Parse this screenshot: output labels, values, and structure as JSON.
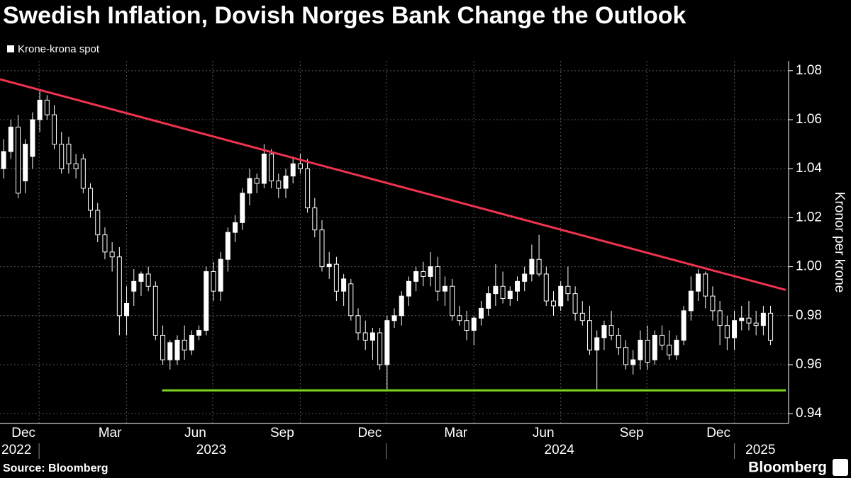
{
  "chart_data": {
    "type": "candlestick",
    "title": "Swedish Inflation, Dovish Norges Bank Change the Outlook",
    "legend": "Krone-krona spot",
    "y_axis_label": "Kronor per krone",
    "source": "Source: Bloomberg",
    "brand": "Bloomberg",
    "color": "#ffffff",
    "grid": true,
    "ylim": [
      0.936,
      1.084
    ],
    "yticks": [
      1.08,
      1.06,
      1.04,
      1.02,
      {
        "value": 1,
        "label": "1.00"
      },
      0.98,
      0.96,
      0.94
    ],
    "xlim": [
      -0.5,
      108.1
    ],
    "xticks": [
      {
        "value": 2.75,
        "label": "Dec"
      },
      {
        "value": 14.7,
        "label": "Mar"
      },
      {
        "value": 26.5,
        "label": "Jun"
      },
      {
        "value": 38.5,
        "label": "Sep"
      },
      {
        "value": 50.6,
        "label": "Dec"
      },
      {
        "value": 62.5,
        "label": "Mar"
      },
      {
        "value": 74.6,
        "label": "Jun"
      },
      {
        "value": 86.8,
        "label": "Sep"
      },
      {
        "value": 98.8,
        "label": "Dec"
      }
    ],
    "xgrid": [
      4.9,
      17.0,
      28.9,
      41.0,
      52.9,
      65.0,
      77.0,
      88.9,
      101.0
    ],
    "years": [
      {
        "value": -0.5,
        "label": "2022"
      },
      {
        "value": 28.7,
        "label": "2023"
      },
      {
        "value": 76.8,
        "label": "2024"
      },
      {
        "value": 104.6,
        "label": "2025"
      }
    ],
    "year_starts": [
      4.9,
      52.9,
      101.0
    ],
    "lines": [
      {
        "color": "#f0334f",
        "x": [
          -0.5,
          108.1
        ],
        "y": [
          1.0765,
          0.9905
        ]
      },
      {
        "color": "#7ed321",
        "x": [
          21.9,
          108.1
        ],
        "y": [
          0.9495,
          0.9495
        ]
      }
    ],
    "candles": [
      [
        1.04,
        1.052,
        1.036,
        1.047
      ],
      [
        1.047,
        1.06,
        1.044,
        1.057
      ],
      [
        1.057,
        1.062,
        1.028,
        1.03
      ],
      [
        1.035,
        1.052,
        1.03,
        1.05
      ],
      [
        1.045,
        1.063,
        1.04,
        1.06
      ],
      [
        1.06,
        1.072,
        1.055,
        1.068
      ],
      [
        1.068,
        1.07,
        1.06,
        1.062
      ],
      [
        1.062,
        1.066,
        1.048,
        1.05
      ],
      [
        1.05,
        1.055,
        1.038,
        1.04
      ],
      [
        1.05,
        1.053,
        1.038,
        1.042
      ],
      [
        1.042,
        1.046,
        1.036,
        1.04
      ],
      [
        1.044,
        1.046,
        1.03,
        1.032
      ],
      [
        1.032,
        1.034,
        1.02,
        1.023
      ],
      [
        1.023,
        1.026,
        1.01,
        1.013
      ],
      [
        1.013,
        1.016,
        1.003,
        1.006
      ],
      [
        1.006,
        1.01,
        0.998,
        1.004
      ],
      [
        1.004,
        1.008,
        0.972,
        0.98
      ],
      [
        0.98,
        0.992,
        0.972,
        0.985
      ],
      [
        0.99,
        0.999,
        0.984,
        0.994
      ],
      [
        0.994,
        0.998,
        0.988,
        0.997
      ],
      [
        0.997,
        1.0,
        0.99,
        0.992
      ],
      [
        0.992,
        0.994,
        0.97,
        0.972
      ],
      [
        0.972,
        0.976,
        0.96,
        0.962
      ],
      [
        0.962,
        0.97,
        0.958,
        0.969
      ],
      [
        0.962,
        0.972,
        0.96,
        0.97
      ],
      [
        0.97,
        0.976,
        0.962,
        0.966
      ],
      [
        0.966,
        0.974,
        0.964,
        0.972
      ],
      [
        0.972,
        0.976,
        0.97,
        0.974
      ],
      [
        0.974,
        1.0,
        0.972,
        0.998
      ],
      [
        0.998,
        1.002,
        0.986,
        0.99
      ],
      [
        0.99,
        1.006,
        0.986,
        1.003
      ],
      [
        1.003,
        1.016,
        0.998,
        1.014
      ],
      [
        1.014,
        1.021,
        1.01,
        1.018
      ],
      [
        1.018,
        1.032,
        1.015,
        1.03
      ],
      [
        1.03,
        1.04,
        1.025,
        1.036
      ],
      [
        1.036,
        1.038,
        1.03,
        1.034
      ],
      [
        1.034,
        1.05,
        1.032,
        1.046
      ],
      [
        1.046,
        1.048,
        1.032,
        1.035
      ],
      [
        1.035,
        1.038,
        1.028,
        1.032
      ],
      [
        1.032,
        1.04,
        1.028,
        1.037
      ],
      [
        1.037,
        1.045,
        1.034,
        1.042
      ],
      [
        1.042,
        1.046,
        1.038,
        1.04
      ],
      [
        1.04,
        1.044,
        1.022,
        1.024
      ],
      [
        1.024,
        1.028,
        1.012,
        1.015
      ],
      [
        1.015,
        1.019,
        0.998,
        1.0
      ],
      [
        1.0,
        1.006,
        0.995,
        1.001
      ],
      [
        1.001,
        1.004,
        0.986,
        0.99
      ],
      [
        0.99,
        0.997,
        0.984,
        0.995
      ],
      [
        0.993,
        0.995,
        0.978,
        0.98
      ],
      [
        0.98,
        0.983,
        0.97,
        0.973
      ],
      [
        0.973,
        0.978,
        0.966,
        0.97
      ],
      [
        0.97,
        0.975,
        0.962,
        0.973
      ],
      [
        0.973,
        0.975,
        0.958,
        0.96
      ],
      [
        0.96,
        0.98,
        0.95,
        0.978
      ],
      [
        0.978,
        0.983,
        0.975,
        0.98
      ],
      [
        0.98,
        0.99,
        0.976,
        0.988
      ],
      [
        0.988,
        0.996,
        0.984,
        0.994
      ],
      [
        0.994,
        1.0,
        0.99,
        0.998
      ],
      [
        0.998,
        1.002,
        0.992,
        0.996
      ],
      [
        0.996,
        1.006,
        0.992,
        1.0
      ],
      [
        1.0,
        1.004,
        0.986,
        0.99
      ],
      [
        0.99,
        0.996,
        0.984,
        0.992
      ],
      [
        0.992,
        0.995,
        0.978,
        0.98
      ],
      [
        0.98,
        0.984,
        0.976,
        0.978
      ],
      [
        0.978,
        0.982,
        0.97,
        0.974
      ],
      [
        0.974,
        0.98,
        0.968,
        0.979
      ],
      [
        0.979,
        0.986,
        0.976,
        0.983
      ],
      [
        0.983,
        0.992,
        0.98,
        0.989
      ],
      [
        0.989,
        1.001,
        0.984,
        0.992
      ],
      [
        0.992,
        0.998,
        0.985,
        0.987
      ],
      [
        0.987,
        0.992,
        0.984,
        0.99
      ],
      [
        0.99,
        0.996,
        0.986,
        0.994
      ],
      [
        0.994,
        1.0,
        0.99,
        0.997
      ],
      [
        0.997,
        1.009,
        0.994,
        1.003
      ],
      [
        1.003,
        1.013,
        0.996,
        0.997
      ],
      [
        0.997,
        1.0,
        0.984,
        0.986
      ],
      [
        0.986,
        0.99,
        0.98,
        0.984
      ],
      [
        0.984,
        0.994,
        0.982,
        0.992
      ],
      [
        0.992,
        1.0,
        0.986,
        0.989
      ],
      [
        0.989,
        0.992,
        0.978,
        0.981
      ],
      [
        0.981,
        0.986,
        0.976,
        0.978
      ],
      [
        0.978,
        0.984,
        0.964,
        0.966
      ],
      [
        0.966,
        0.974,
        0.95,
        0.971
      ],
      [
        0.971,
        0.978,
        0.966,
        0.976
      ],
      [
        0.976,
        0.982,
        0.97,
        0.972
      ],
      [
        0.972,
        0.975,
        0.964,
        0.967
      ],
      [
        0.967,
        0.97,
        0.958,
        0.96
      ],
      [
        0.96,
        0.966,
        0.956,
        0.962
      ],
      [
        0.962,
        0.974,
        0.958,
        0.97
      ],
      [
        0.97,
        0.976,
        0.958,
        0.961
      ],
      [
        0.962,
        0.974,
        0.96,
        0.972
      ],
      [
        0.972,
        0.976,
        0.966,
        0.968
      ],
      [
        0.968,
        0.974,
        0.962,
        0.964
      ],
      [
        0.964,
        0.972,
        0.962,
        0.97
      ],
      [
        0.97,
        0.984,
        0.968,
        0.982
      ],
      [
        0.982,
        0.996,
        0.978,
        0.99
      ],
      [
        0.99,
        0.999,
        0.986,
        0.997
      ],
      [
        0.997,
        0.998,
        0.983,
        0.988
      ],
      [
        0.988,
        0.992,
        0.978,
        0.982
      ],
      [
        0.982,
        0.986,
        0.968,
        0.976
      ],
      [
        0.976,
        0.98,
        0.966,
        0.971
      ],
      [
        0.971,
        0.982,
        0.966,
        0.978
      ],
      [
        0.978,
        0.984,
        0.974,
        0.979
      ],
      [
        0.979,
        0.986,
        0.974,
        0.977
      ],
      [
        0.977,
        0.982,
        0.972,
        0.976
      ],
      [
        0.976,
        0.984,
        0.972,
        0.981
      ],
      [
        0.981,
        0.984,
        0.968,
        0.97
      ]
    ]
  }
}
